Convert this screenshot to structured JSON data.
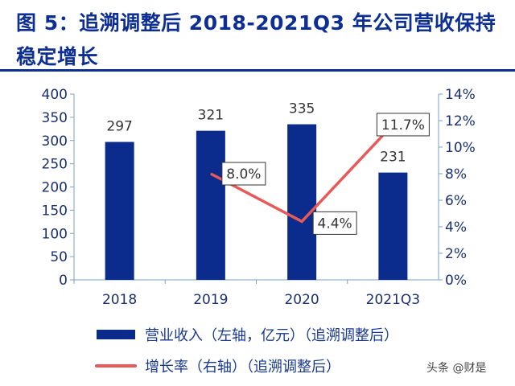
{
  "title": "图 5：追溯调整后 2018-2021Q3 年公司营收保持稳定增长",
  "watermark": "头条 @财是",
  "colors": {
    "title": "#0d2f94",
    "bar": "#0b2c8c",
    "line": "#e85a5a"
  },
  "chart_data": {
    "type": "bar+line",
    "title": "图 5：追溯调整后 2018-2021Q3 年公司营收保持稳定增长",
    "categories": [
      "2018",
      "2019",
      "2020",
      "2021Q3"
    ],
    "series": [
      {
        "name": "营业收入（左轴，亿元）（追溯调整后）",
        "type": "bar",
        "axis": "left",
        "values": [
          297,
          321,
          335,
          231
        ],
        "labels": [
          "297",
          "321",
          "335",
          "231"
        ]
      },
      {
        "name": "增长率（右轴）（追溯调整后）",
        "type": "line",
        "axis": "right",
        "values": [
          null,
          8.0,
          4.4,
          11.7
        ],
        "labels": [
          "",
          "8.0%",
          "4.4%",
          "11.7%"
        ]
      }
    ],
    "left_axis": {
      "ylim": [
        0,
        400
      ],
      "ticks": [
        "0",
        "50",
        "100",
        "150",
        "200",
        "250",
        "300",
        "350",
        "400"
      ]
    },
    "right_axis": {
      "ylim": [
        0,
        14
      ],
      "ticks": [
        "0%",
        "2%",
        "4%",
        "6%",
        "8%",
        "10%",
        "12%",
        "14%"
      ]
    },
    "grid": false,
    "legend": "bottom"
  }
}
